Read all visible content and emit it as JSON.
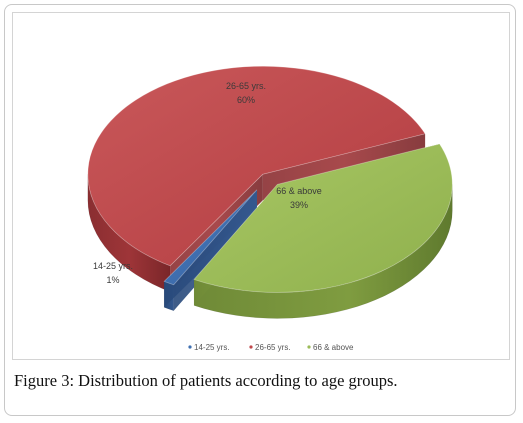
{
  "chart_data": {
    "type": "pie",
    "style": "3d-exploded",
    "slices": [
      {
        "label": "14-25 yrs.",
        "pct_label": "1%",
        "value": 1,
        "color": "#3e6fb0"
      },
      {
        "label": "26-65 yrs.",
        "pct_label": "60%",
        "value": 60,
        "color": "#c0484b"
      },
      {
        "label": "66 & above",
        "pct_label": "39%",
        "value": 39,
        "color": "#9bbb58"
      }
    ],
    "legend": [
      "14-25 yrs.",
      "26-65 yrs.",
      "66 & above"
    ],
    "legend_position": "bottom"
  },
  "caption": {
    "label": "Figure 3:",
    "text": "Distribution of patients according to age groups."
  }
}
